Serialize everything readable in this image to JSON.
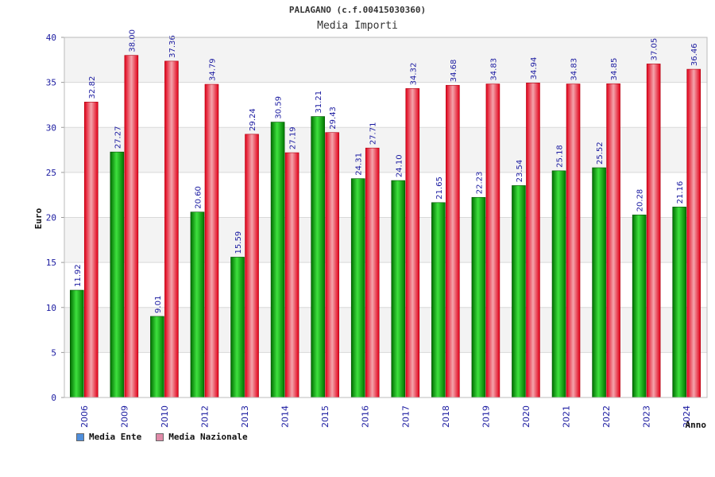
{
  "title": "PALAGANO (c.f.00415030360)",
  "subtitle": "Media Importi",
  "legend": {
    "ente": "Media Ente",
    "nazionale": "Media Nazionale",
    "ente_color": "#4f8fdc",
    "nazionale_color": "#e08aa8"
  },
  "chart_data": {
    "type": "bar",
    "xlabel": "Anno",
    "ylabel": "Euro",
    "ylim": [
      0,
      40
    ],
    "yticks": [
      0,
      5,
      10,
      15,
      20,
      25,
      30,
      35,
      40
    ],
    "grid": true,
    "legend_position": "bottom-left",
    "categories": [
      "2006",
      "2009",
      "2010",
      "2012",
      "2013",
      "2014",
      "2015",
      "2016",
      "2017",
      "2018",
      "2019",
      "2020",
      "2021",
      "2022",
      "2023",
      "2024"
    ],
    "series": [
      {
        "name": "Media Ente",
        "color": "#00b000",
        "values": [
          11.92,
          27.27,
          9.01,
          20.6,
          15.59,
          30.59,
          31.21,
          24.31,
          24.1,
          21.65,
          22.23,
          23.54,
          25.18,
          25.52,
          20.28,
          21.16
        ],
        "labels": [
          "11.92",
          "27.27",
          "9.01",
          "20.60",
          "15.59",
          "30.59",
          "31.21",
          "24.31",
          "24.10",
          "21.65",
          "22.23",
          "23.54",
          "25.18",
          "25.52",
          "20.28",
          "21.16"
        ]
      },
      {
        "name": "Media Nazionale",
        "color": "#e8102a",
        "values": [
          32.82,
          38.0,
          37.36,
          34.79,
          29.24,
          27.19,
          29.43,
          27.71,
          34.32,
          34.68,
          34.83,
          34.94,
          34.83,
          34.85,
          37.05,
          36.46
        ],
        "labels": [
          "32.82",
          "38.00",
          "37.36",
          "34.79",
          "29.24",
          "27.19",
          "29.43",
          "27.71",
          "34.32",
          "34.68",
          "34.83",
          "34.94",
          "34.83",
          "34.85",
          "37.05",
          "36.46"
        ]
      }
    ]
  }
}
